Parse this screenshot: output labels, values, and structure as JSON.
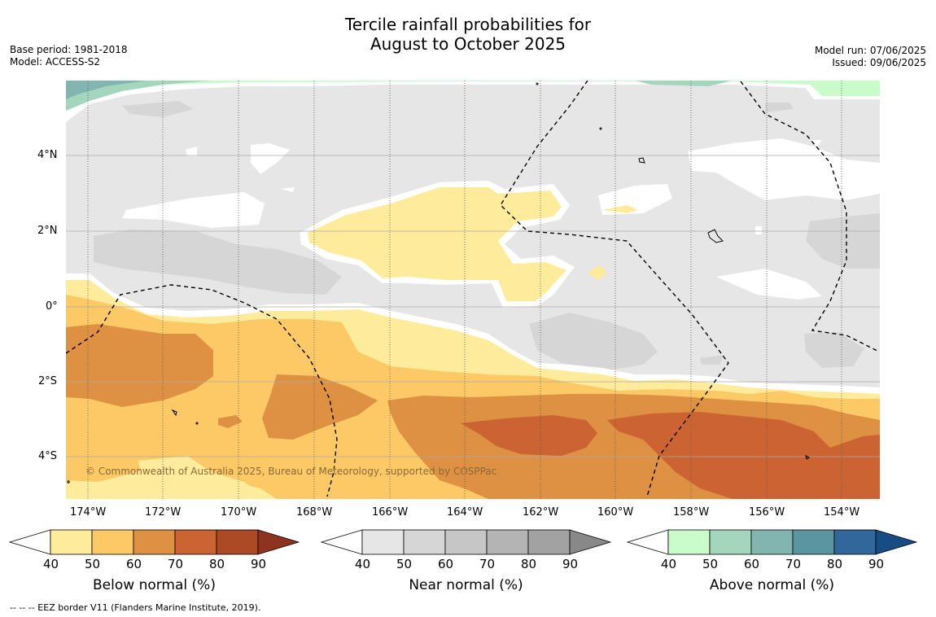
{
  "title": {
    "line1": "Tercile rainfall probabilities for",
    "line2": "August to October 2025"
  },
  "meta_left": {
    "base_period": "Base period: 1981-2018",
    "model": "Model: ACCESS-S2"
  },
  "meta_right": {
    "model_run": "Model run: 07/06/2025",
    "issued": "Issued: 09/06/2025"
  },
  "map": {
    "lat_labels": [
      "4°N",
      "2°N",
      "0°",
      "2°S",
      "4°S"
    ],
    "lon_labels": [
      "174°W",
      "172°W",
      "170°W",
      "168°W",
      "166°W",
      "164°W",
      "162°W",
      "160°W",
      "158°W",
      "156°W",
      "154°W"
    ],
    "copyright": "© Commonwealth of Australia 2025, Bureau of Meteorology, supported by COSPPac"
  },
  "colorbars": [
    {
      "title": "Below normal (%)",
      "ticks": [
        "40",
        "50",
        "60",
        "70",
        "80",
        "90"
      ],
      "colors": [
        "#ffffff",
        "#ffeb9c",
        "#fdc966",
        "#de9142",
        "#cb6332",
        "#ac4a26",
        "#8f3220"
      ]
    },
    {
      "title": "Near normal (%)",
      "ticks": [
        "40",
        "50",
        "60",
        "70",
        "80",
        "90"
      ],
      "colors": [
        "#ffffff",
        "#e6e6e6",
        "#d6d6d6",
        "#c6c6c6",
        "#b4b4b4",
        "#a2a2a2",
        "#888888"
      ]
    },
    {
      "title": "Above normal (%)",
      "ticks": [
        "40",
        "50",
        "60",
        "70",
        "80",
        "90"
      ],
      "colors": [
        "#ffffff",
        "#c9fbcb",
        "#a3d6bd",
        "#82b5b0",
        "#5b95a1",
        "#32679c",
        "#174c84"
      ]
    }
  ],
  "footnote": "--  --  -- EEZ border V11 (Flanders Marine Institute, 2019)."
}
